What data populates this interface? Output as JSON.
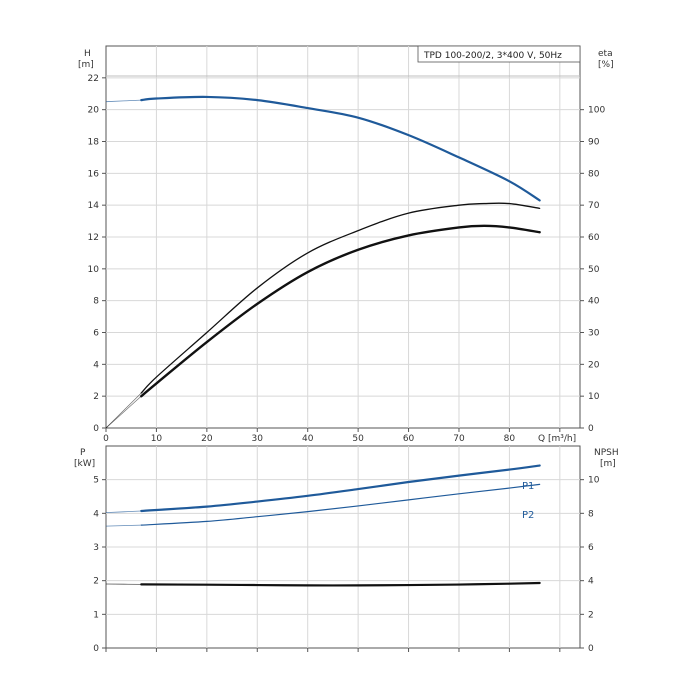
{
  "chart_data": [
    {
      "type": "line",
      "title": "TPD 100-200/2, 3*400 V, 50Hz",
      "xlabel": "Q [m³/h]",
      "x_ticks": [
        "0",
        "10",
        "20",
        "30",
        "40",
        "50",
        "60",
        "70",
        "80"
      ],
      "xlim": [
        0,
        94
      ],
      "ylabel_left": [
        "H",
        "[m]"
      ],
      "ylabel_right": [
        "eta",
        "[%]"
      ],
      "ylim_left": [
        0,
        24
      ],
      "ylim_right": [
        0,
        120
      ],
      "y_ticks_left": [
        "0",
        "2",
        "4",
        "6",
        "8",
        "10",
        "12",
        "14",
        "16",
        "18",
        "20",
        "22"
      ],
      "y_ticks_right": [
        "0",
        "10",
        "20",
        "30",
        "40",
        "50",
        "60",
        "70",
        "80",
        "90",
        "100"
      ],
      "grid": true,
      "series": [
        {
          "axis": "left",
          "color": "#1f5a9a",
          "stroke_width": 2.2,
          "x": [
            0,
            7,
            10,
            20,
            30,
            40,
            50,
            60,
            70,
            80,
            86
          ],
          "y": [
            20.5,
            20.6,
            20.7,
            20.8,
            20.6,
            20.1,
            19.5,
            18.4,
            17.0,
            15.5,
            14.3
          ],
          "x_dashed_end": 7
        },
        {
          "axis": "right",
          "color": "#111111",
          "stroke_width": 1.3,
          "x": [
            7,
            10,
            20,
            30,
            40,
            50,
            60,
            70,
            75,
            80,
            86
          ],
          "y": [
            11,
            16,
            30,
            44,
            55,
            62,
            67.5,
            70,
            70.5,
            70.5,
            69
          ],
          "x_dashed_end": 7
        },
        {
          "axis": "right",
          "color": "#111111",
          "stroke_width": 2.4,
          "x": [
            7,
            10,
            20,
            30,
            40,
            50,
            60,
            70,
            75,
            80,
            86
          ],
          "y": [
            10,
            14,
            27,
            39,
            49,
            56,
            60.5,
            63,
            63.5,
            63,
            61.5
          ],
          "x_dashed_end": 7
        }
      ]
    },
    {
      "type": "line",
      "xlabel": "",
      "xlim": [
        0,
        94
      ],
      "ylabel_left": [
        "P",
        "[kW]"
      ],
      "ylabel_right": [
        "NPSH",
        "[m]"
      ],
      "ylim_left": [
        0,
        6
      ],
      "ylim_right": [
        0,
        12
      ],
      "y_ticks_left": [
        "0",
        "1",
        "2",
        "3",
        "4",
        "5"
      ],
      "y_ticks_right": [
        "0",
        "2",
        "4",
        "6",
        "8",
        "10"
      ],
      "grid": true,
      "series": [
        {
          "name": "P1",
          "axis": "left",
          "color": "#1f5a9a",
          "stroke_width": 2.2,
          "x": [
            0,
            7,
            20,
            30,
            40,
            50,
            60,
            70,
            80,
            86
          ],
          "y": [
            4.02,
            4.07,
            4.2,
            4.35,
            4.52,
            4.72,
            4.93,
            5.12,
            5.3,
            5.42
          ],
          "x_dashed_end": 7
        },
        {
          "name": "P2",
          "axis": "left",
          "color": "#1f5a9a",
          "stroke_width": 1.2,
          "x": [
            0,
            7,
            20,
            30,
            40,
            50,
            60,
            70,
            80,
            86
          ],
          "y": [
            3.62,
            3.65,
            3.76,
            3.9,
            4.05,
            4.22,
            4.4,
            4.58,
            4.75,
            4.86
          ],
          "x_dashed_end": 7
        },
        {
          "axis": "right",
          "color": "#111111",
          "stroke_width": 2.2,
          "x": [
            0,
            7,
            20,
            30,
            40,
            50,
            60,
            70,
            80,
            86
          ],
          "y": [
            3.8,
            3.78,
            3.76,
            3.74,
            3.72,
            3.72,
            3.74,
            3.77,
            3.82,
            3.86
          ],
          "x_dashed_end": 7
        }
      ]
    }
  ]
}
